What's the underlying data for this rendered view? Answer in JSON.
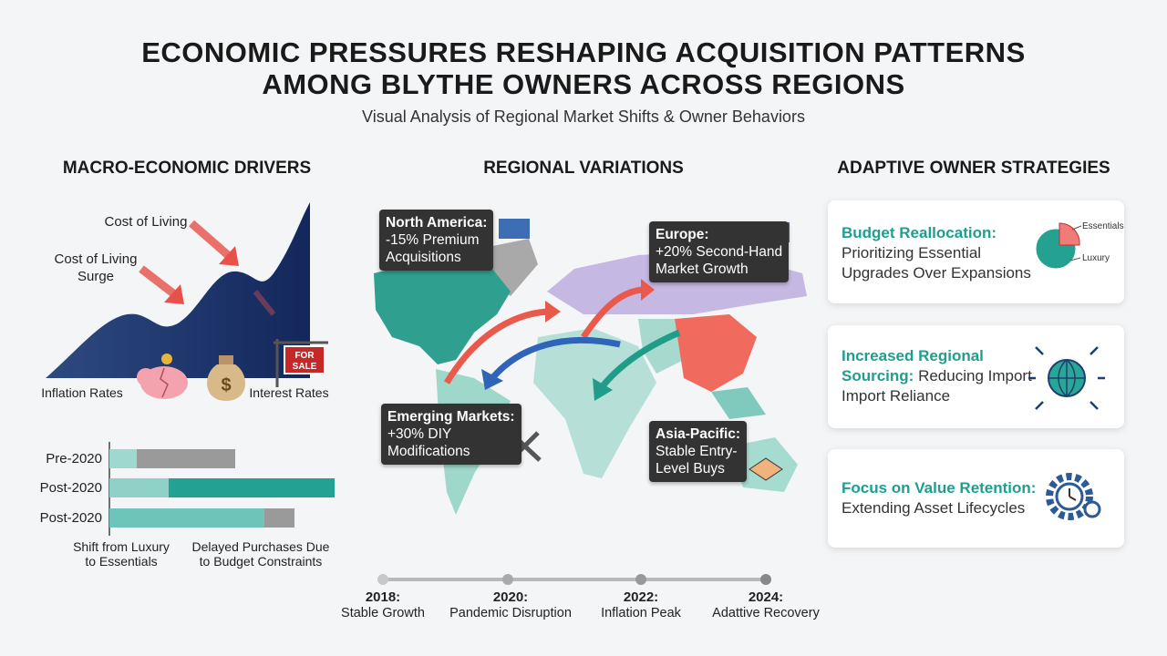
{
  "header": {
    "title_lines": [
      "ECONOMIC PRESSURES RESHAPING ACQUISITION PATTERNS",
      "AMONG BLYTHE OWNERS ACROSS REGIONS"
    ],
    "subtitle": "Visual Analysis of Regional Market Shifts & Owner Behaviors"
  },
  "drivers": {
    "heading": "MACRO-ECONOMIC DRIVERS",
    "label_top": "Cost of Living",
    "label_surge": [
      "Cost of Living",
      "Surge"
    ],
    "label_inflation": "Inflation Rates",
    "label_interest": "Interest Rates",
    "sign": [
      "FOR",
      "SALE"
    ],
    "bar_rows": [
      "Pre-2020",
      "Post-2020",
      "Post-2020"
    ],
    "captions": [
      [
        "Shift from Luxury",
        "to Essentials"
      ],
      [
        "Delayed Purchases Due",
        "to Budget Constraints"
      ]
    ]
  },
  "regions": {
    "heading": "REGIONAL VARIATIONS",
    "callouts": [
      {
        "title": "North America:",
        "lines": [
          "-15% Premium",
          "Acquisitions"
        ]
      },
      {
        "title": "Europe:",
        "lines": [
          "+20% Second-Hand",
          "Market Growth"
        ]
      },
      {
        "title": "Emerging Markets:",
        "lines": [
          "+30% DIY",
          "Modifications"
        ]
      },
      {
        "title": "Asia-Pacific:",
        "lines": [
          "Stable Entry-",
          "Level Buys"
        ]
      }
    ]
  },
  "timeline": [
    {
      "year": "2018:",
      "label": "Stable Growth"
    },
    {
      "year": "2020:",
      "label": "Pandemic Disruption"
    },
    {
      "year": "2022:",
      "label": "Inflation Peak"
    },
    {
      "year": "2024:",
      "label": "Adattive Recovery"
    }
  ],
  "strategies": {
    "heading": "ADAPTIVE OWNER STRATEGIES",
    "cards": [
      {
        "title": "Budget Reallocation:",
        "text": "Prioritizing Essential Upgrades Over Expansions"
      },
      {
        "title": "Increased Regional Sourcing:",
        "text": "Reducing Import Import Reliance"
      },
      {
        "title": "Focus on Value Retention:",
        "text": "Extending Asset Lifecycles"
      }
    ],
    "pie_labels": [
      "Essentials",
      "Luxury"
    ]
  }
}
